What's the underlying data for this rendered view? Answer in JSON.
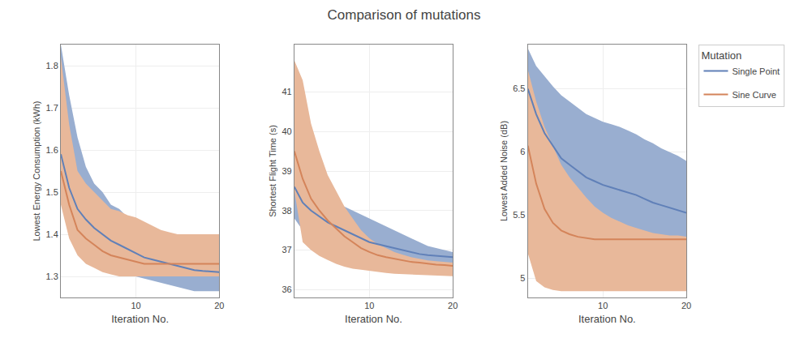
{
  "title": "Comparison of mutations",
  "legend_title": "Mutation",
  "chart_data": [
    {
      "type": "line",
      "xlabel": "Iteration No.",
      "ylabel": "Lowest Energy Consumption (kWh)",
      "x": [
        1,
        2,
        3,
        4,
        5,
        6,
        7,
        8,
        9,
        10,
        11,
        12,
        13,
        14,
        15,
        16,
        17,
        18,
        19,
        20
      ],
      "xlim": [
        1,
        20
      ],
      "xticks": [
        10,
        20
      ],
      "ylim": [
        1.25,
        1.85
      ],
      "yticks": [
        1.3,
        1.4,
        1.5,
        1.6,
        1.7,
        1.8
      ],
      "grid": true,
      "legend": "right",
      "series": [
        {
          "name": "Single Point",
          "color": "#6080b8",
          "band_color": "#99aed0",
          "values": [
            1.59,
            1.51,
            1.46,
            1.435,
            1.415,
            1.4,
            1.385,
            1.375,
            1.365,
            1.355,
            1.345,
            1.34,
            1.335,
            1.33,
            1.325,
            1.32,
            1.315,
            1.313,
            1.312,
            1.31
          ],
          "upper": [
            1.85,
            1.73,
            1.63,
            1.56,
            1.52,
            1.5,
            1.47,
            1.46,
            1.44,
            1.43,
            1.42,
            1.41,
            1.4,
            1.395,
            1.39,
            1.385,
            1.38,
            1.375,
            1.37,
            1.365
          ],
          "lower": [
            1.59,
            1.51,
            1.42,
            1.385,
            1.365,
            1.34,
            1.325,
            1.31,
            1.305,
            1.3,
            1.295,
            1.29,
            1.285,
            1.28,
            1.275,
            1.27,
            1.265,
            1.265,
            1.265,
            1.265
          ]
        },
        {
          "name": "Sine Curve",
          "color": "#d4845a",
          "band_color": "#e8b89a",
          "values": [
            1.55,
            1.47,
            1.41,
            1.39,
            1.375,
            1.36,
            1.35,
            1.345,
            1.34,
            1.335,
            1.33,
            1.33,
            1.33,
            1.33,
            1.33,
            1.33,
            1.33,
            1.33,
            1.33,
            1.33
          ],
          "upper": [
            1.82,
            1.66,
            1.55,
            1.52,
            1.5,
            1.48,
            1.46,
            1.455,
            1.445,
            1.44,
            1.43,
            1.42,
            1.41,
            1.405,
            1.4,
            1.4,
            1.4,
            1.4,
            1.4,
            1.4
          ],
          "lower": [
            1.47,
            1.39,
            1.35,
            1.33,
            1.32,
            1.31,
            1.305,
            1.3,
            1.3,
            1.3,
            1.3,
            1.3,
            1.3,
            1.3,
            1.3,
            1.3,
            1.3,
            1.3,
            1.3,
            1.3
          ]
        }
      ]
    },
    {
      "type": "line",
      "xlabel": "Iteration No.",
      "ylabel": "Shortest Flight Time (s)",
      "x": [
        1,
        2,
        3,
        4,
        5,
        6,
        7,
        8,
        9,
        10,
        11,
        12,
        13,
        14,
        15,
        16,
        17,
        18,
        19,
        20
      ],
      "xlim": [
        1,
        20
      ],
      "xticks": [
        10,
        20
      ],
      "ylim": [
        35.8,
        42.2
      ],
      "yticks": [
        36,
        37,
        38,
        39,
        40,
        41
      ],
      "grid": true,
      "legend": "right",
      "series": [
        {
          "name": "Single Point",
          "color": "#6080b8",
          "band_color": "#99aed0",
          "values": [
            38.6,
            38.2,
            38.0,
            37.85,
            37.7,
            37.6,
            37.5,
            37.4,
            37.3,
            37.2,
            37.15,
            37.1,
            37.05,
            37.0,
            36.95,
            36.9,
            36.87,
            36.85,
            36.83,
            36.82
          ],
          "upper": [
            39.2,
            38.85,
            38.6,
            38.45,
            38.3,
            38.2,
            38.1,
            38.0,
            37.9,
            37.8,
            37.7,
            37.6,
            37.5,
            37.4,
            37.3,
            37.2,
            37.1,
            37.05,
            37.0,
            36.95
          ],
          "lower": [
            37.8,
            37.5,
            37.3,
            37.15,
            37.0,
            36.9,
            36.82,
            36.75,
            36.7,
            36.65,
            36.62,
            36.6,
            36.58,
            36.56,
            36.55,
            36.54,
            36.53,
            36.52,
            36.51,
            36.5
          ]
        },
        {
          "name": "Sine Curve",
          "color": "#d4845a",
          "band_color": "#e8b89a",
          "values": [
            39.5,
            38.8,
            38.3,
            38.0,
            37.75,
            37.55,
            37.35,
            37.2,
            37.05,
            36.95,
            36.87,
            36.82,
            36.78,
            36.74,
            36.7,
            36.68,
            36.65,
            36.63,
            36.62,
            36.6
          ],
          "upper": [
            41.8,
            41.3,
            40.2,
            39.5,
            38.9,
            38.5,
            38.1,
            37.8,
            37.5,
            37.3,
            37.15,
            37.05,
            36.95,
            36.88,
            36.82,
            36.78,
            36.74,
            36.72,
            36.7,
            36.68
          ],
          "lower": [
            38.5,
            37.2,
            37.0,
            36.85,
            36.75,
            36.65,
            36.58,
            36.53,
            36.5,
            36.47,
            36.44,
            36.42,
            36.4,
            36.39,
            36.38,
            36.37,
            36.36,
            36.35,
            36.35,
            36.34
          ]
        }
      ]
    },
    {
      "type": "line",
      "xlabel": "Iteration No.",
      "ylabel": "Lowest Added Noise (dB)",
      "x": [
        1,
        2,
        3,
        4,
        5,
        6,
        7,
        8,
        9,
        10,
        11,
        12,
        13,
        14,
        15,
        16,
        17,
        18,
        19,
        20
      ],
      "xlim": [
        1,
        20
      ],
      "xticks": [
        10,
        20
      ],
      "ylim": [
        4.85,
        6.85
      ],
      "yticks": [
        5,
        5.5,
        6,
        6.5
      ],
      "grid": true,
      "legend": "right",
      "series": [
        {
          "name": "Single Point",
          "color": "#6080b8",
          "band_color": "#99aed0",
          "values": [
            6.5,
            6.3,
            6.15,
            6.05,
            5.95,
            5.9,
            5.85,
            5.8,
            5.77,
            5.74,
            5.72,
            5.7,
            5.68,
            5.66,
            5.63,
            5.6,
            5.58,
            5.56,
            5.54,
            5.52
          ],
          "upper": [
            6.82,
            6.68,
            6.6,
            6.52,
            6.45,
            6.4,
            6.35,
            6.3,
            6.27,
            6.24,
            6.22,
            6.2,
            6.17,
            6.14,
            6.1,
            6.07,
            6.03,
            6.0,
            5.97,
            5.93
          ],
          "lower": [
            6.25,
            5.98,
            5.82,
            5.68,
            5.58,
            5.52,
            5.47,
            5.43,
            5.4,
            5.38,
            5.36,
            5.34,
            5.32,
            5.3,
            5.28,
            5.26,
            5.24,
            5.22,
            5.21,
            5.2
          ]
        },
        {
          "name": "Sine Curve",
          "color": "#d4845a",
          "band_color": "#e8b89a",
          "values": [
            6.05,
            5.75,
            5.55,
            5.44,
            5.38,
            5.35,
            5.33,
            5.32,
            5.31,
            5.31,
            5.31,
            5.31,
            5.31,
            5.31,
            5.31,
            5.31,
            5.31,
            5.31,
            5.31,
            5.31
          ],
          "upper": [
            6.65,
            6.4,
            6.2,
            6.05,
            5.9,
            5.8,
            5.72,
            5.64,
            5.57,
            5.52,
            5.48,
            5.45,
            5.42,
            5.4,
            5.38,
            5.36,
            5.35,
            5.34,
            5.34,
            5.33
          ],
          "lower": [
            5.2,
            4.98,
            4.93,
            4.91,
            4.9,
            4.9,
            4.9,
            4.9,
            4.9,
            4.9,
            4.9,
            4.9,
            4.9,
            4.9,
            4.9,
            4.9,
            4.9,
            4.9,
            4.9,
            4.9
          ]
        }
      ]
    }
  ]
}
